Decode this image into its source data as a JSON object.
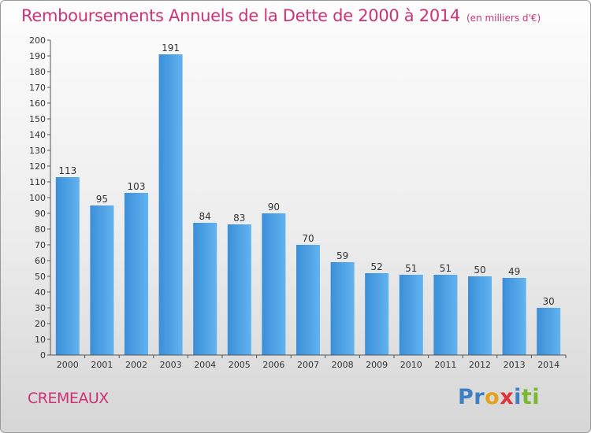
{
  "chart_data": {
    "type": "bar",
    "title": "Remboursements Annuels de la Dette de 2000 à 2014",
    "subtitle": "(en milliers d'€)",
    "categories": [
      "2000",
      "2001",
      "2002",
      "2003",
      "2004",
      "2005",
      "2006",
      "2007",
      "2008",
      "2009",
      "2010",
      "2011",
      "2012",
      "2013",
      "2014"
    ],
    "values": [
      113,
      95,
      103,
      191,
      84,
      83,
      90,
      70,
      59,
      52,
      51,
      51,
      50,
      49,
      30
    ],
    "ylim": [
      0,
      200
    ],
    "ytick_step": 10,
    "grid": false,
    "legend": "none",
    "bar_color": "#3a8fd8",
    "bar_color_light": "#62b3f0"
  },
  "footer": {
    "place": "CREMEAUX",
    "logo_letters": [
      {
        "ch": "P",
        "color": "#3c7fc4"
      },
      {
        "ch": "r",
        "color": "#3c7fc4"
      },
      {
        "ch": "o",
        "color": "#e5a21a"
      },
      {
        "ch": "x",
        "color": "#e0323a"
      },
      {
        "ch": "i",
        "color": "#3c7fc4"
      },
      {
        "ch": "t",
        "color": "#7cb82f"
      },
      {
        "ch": "i",
        "color": "#7cb82f"
      }
    ]
  }
}
